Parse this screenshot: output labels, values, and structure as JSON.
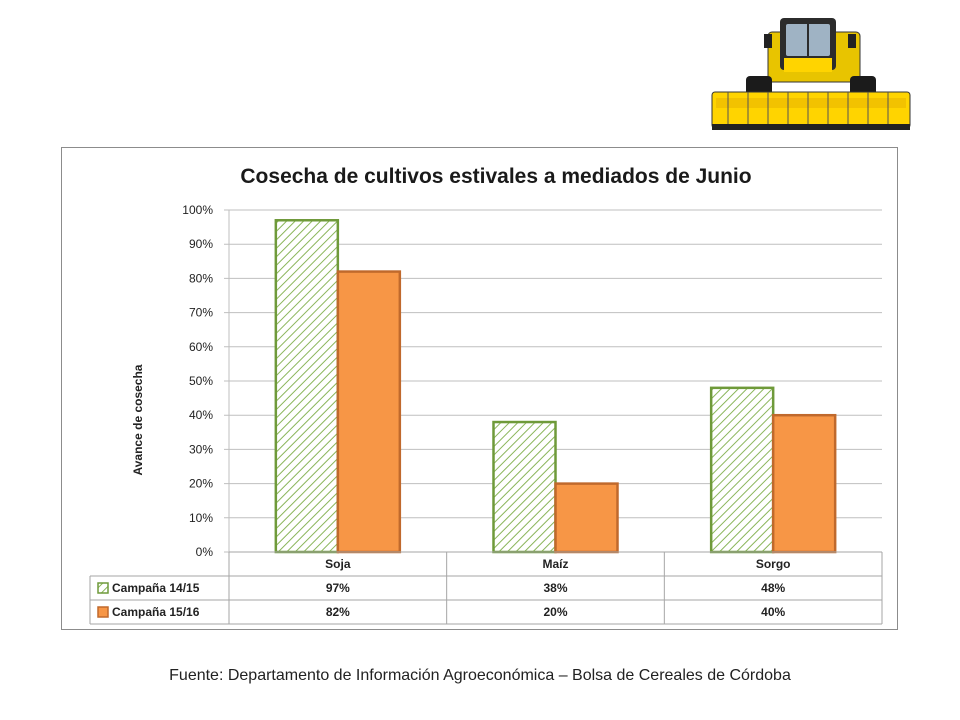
{
  "colors": {
    "series1_stroke": "#6f9a3a",
    "series1_hatch": "#8ab55a",
    "series2_fill": "#f79646",
    "series2_stroke": "#c0692c",
    "grid": "#bfbfbf"
  },
  "footer": {
    "source": "Fuente: Departamento de Información Agroeconómica – Bolsa de Cereales de Córdoba"
  },
  "chart_data": {
    "type": "bar",
    "title": "Cosecha de cultivos estivales a mediados de Junio",
    "xlabel": "",
    "ylabel": "Avance de cosecha",
    "ylim": [
      0,
      100
    ],
    "y_ticks": [
      "0%",
      "10%",
      "20%",
      "30%",
      "40%",
      "50%",
      "60%",
      "70%",
      "80%",
      "90%",
      "100%"
    ],
    "grid": true,
    "legend": "data-table",
    "categories": [
      "Soja",
      "Maíz",
      "Sorgo"
    ],
    "series": [
      {
        "name": "Campaña 14/15",
        "values": [
          97,
          38,
          48
        ],
        "labels": [
          "97%",
          "38%",
          "48%"
        ]
      },
      {
        "name": "Campaña 15/16",
        "values": [
          82,
          20,
          40
        ],
        "labels": [
          "82%",
          "20%",
          "40%"
        ]
      }
    ]
  }
}
